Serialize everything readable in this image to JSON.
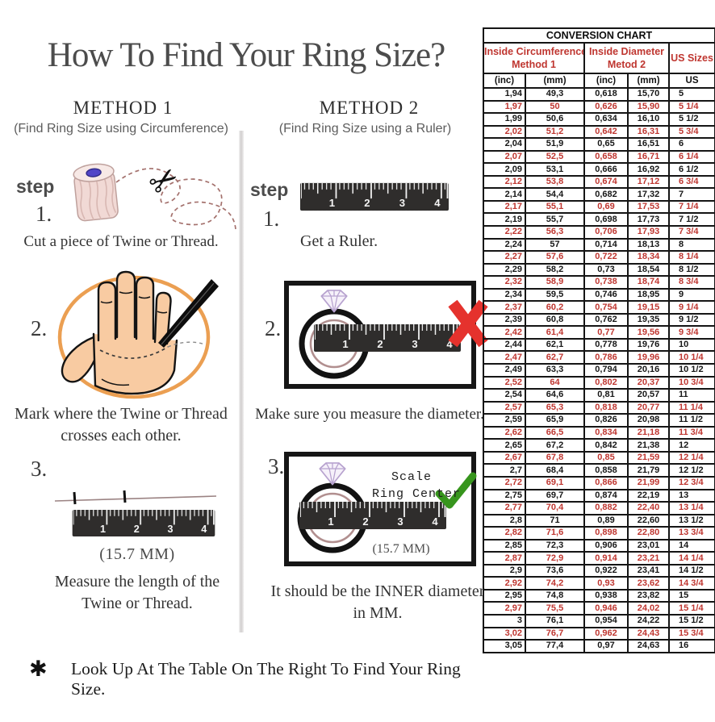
{
  "page": {
    "title": "How To Find Your Ring Size?",
    "footnote_symbol": "✱",
    "footnote_text": "Look Up At The Table On The Right To Find Your Ring Size."
  },
  "method1": {
    "heading": "METHOD 1",
    "subheading": "(Find Ring Size using Circumference)",
    "step_label": "step",
    "steps": [
      {
        "number": "1.",
        "caption": "Cut a piece of Twine or Thread."
      },
      {
        "number": "2.",
        "caption_line1": "Mark where the Twine or Thread",
        "caption_line2": "crosses each other."
      },
      {
        "number": "3.",
        "measurement": "(15.7 MM)",
        "caption_line1": "Measure the length of the",
        "caption_line2": "Twine or Thread."
      }
    ]
  },
  "method2": {
    "heading": "METHOD 2",
    "subheading": "(Find Ring Size using a Ruler)",
    "step_label": "step",
    "steps": [
      {
        "number": "1.",
        "caption": "Get a Ruler."
      },
      {
        "number": "2.",
        "caption": "Make sure you measure the diameter."
      },
      {
        "number": "3.",
        "scale_line1": "Scale",
        "scale_line2": "Ring Center",
        "measurement": "(15.7 MM)",
        "caption_line1": "It should be the INNER diameter",
        "caption_line2": "in MM."
      }
    ]
  },
  "ruler": {
    "numbers": [
      "1",
      "2",
      "3",
      "4"
    ]
  },
  "colors": {
    "table_red": "#bf3630",
    "table_black": "#161616",
    "check_green": "#37951d",
    "cross_red": "#e5322d",
    "hand_skin": "#f8cba2",
    "circle_orange": "#e9953f",
    "ring_inner": "#b18f8f",
    "diamond_lavender": "#b7a2cf"
  },
  "conversion_chart": {
    "title": "CONVERSION CHART",
    "groups": [
      {
        "line1": "Inside Circumference",
        "line2": "Method 1"
      },
      {
        "line1": "Inside Diameter",
        "line2": "Metod 2"
      },
      {
        "label": "US Sizes"
      }
    ],
    "subheaders": [
      "(inc)",
      "(mm)",
      "(inc)",
      "(mm)",
      "US"
    ],
    "rows": [
      [
        "1,94",
        "49,3",
        "0,618",
        "15,70",
        "5"
      ],
      [
        "1,97",
        "50",
        "0,626",
        "15,90",
        "5 1/4"
      ],
      [
        "1,99",
        "50,6",
        "0,634",
        "16,10",
        "5 1/2"
      ],
      [
        "2,02",
        "51,2",
        "0,642",
        "16,31",
        "5 3/4"
      ],
      [
        "2,04",
        "51,9",
        "0,65",
        "16,51",
        "6"
      ],
      [
        "2,07",
        "52,5",
        "0,658",
        "16,71",
        "6 1/4"
      ],
      [
        "2,09",
        "53,1",
        "0,666",
        "16,92",
        "6 1/2"
      ],
      [
        "2,12",
        "53,8",
        "0,674",
        "17,12",
        "6 3/4"
      ],
      [
        "2,14",
        "54,4",
        "0,682",
        "17,32",
        "7"
      ],
      [
        "2,17",
        "55,1",
        "0,69",
        "17,53",
        "7 1/4"
      ],
      [
        "2,19",
        "55,7",
        "0,698",
        "17,73",
        "7 1/2"
      ],
      [
        "2,22",
        "56,3",
        "0,706",
        "17,93",
        "7 3/4"
      ],
      [
        "2,24",
        "57",
        "0,714",
        "18,13",
        "8"
      ],
      [
        "2,27",
        "57,6",
        "0,722",
        "18,34",
        "8 1/4"
      ],
      [
        "2,29",
        "58,2",
        "0,73",
        "18,54",
        "8 1/2"
      ],
      [
        "2,32",
        "58,9",
        "0,738",
        "18,74",
        "8 3/4"
      ],
      [
        "2,34",
        "59,5",
        "0,746",
        "18,95",
        "9"
      ],
      [
        "2,37",
        "60,2",
        "0,754",
        "19,15",
        "9 1/4"
      ],
      [
        "2,39",
        "60,8",
        "0,762",
        "19,35",
        "9 1/2"
      ],
      [
        "2,42",
        "61,4",
        "0,77",
        "19,56",
        "9 3/4"
      ],
      [
        "2,44",
        "62,1",
        "0,778",
        "19,76",
        "10"
      ],
      [
        "2,47",
        "62,7",
        "0,786",
        "19,96",
        "10 1/4"
      ],
      [
        "2,49",
        "63,3",
        "0,794",
        "20,16",
        "10 1/2"
      ],
      [
        "2,52",
        "64",
        "0,802",
        "20,37",
        "10 3/4"
      ],
      [
        "2,54",
        "64,6",
        "0,81",
        "20,57",
        "11"
      ],
      [
        "2,57",
        "65,3",
        "0,818",
        "20,77",
        "11 1/4"
      ],
      [
        "2,59",
        "65,9",
        "0,826",
        "20,98",
        "11 1/2"
      ],
      [
        "2,62",
        "66,5",
        "0,834",
        "21,18",
        "11 3/4"
      ],
      [
        "2,65",
        "67,2",
        "0,842",
        "21,38",
        "12"
      ],
      [
        "2,67",
        "67,8",
        "0,85",
        "21,59",
        "12 1/4"
      ],
      [
        "2,7",
        "68,4",
        "0,858",
        "21,79",
        "12 1/2"
      ],
      [
        "2,72",
        "69,1",
        "0,866",
        "21,99",
        "12 3/4"
      ],
      [
        "2,75",
        "69,7",
        "0,874",
        "22,19",
        "13"
      ],
      [
        "2,77",
        "70,4",
        "0,882",
        "22,40",
        "13 1/4"
      ],
      [
        "2,8",
        "71",
        "0,89",
        "22,60",
        "13 1/2"
      ],
      [
        "2,82",
        "71,6",
        "0,898",
        "22,80",
        "13 3/4"
      ],
      [
        "2,85",
        "72,3",
        "0,906",
        "23,01",
        "14"
      ],
      [
        "2,87",
        "72,9",
        "0,914",
        "23,21",
        "14 1/4"
      ],
      [
        "2,9",
        "73,6",
        "0,922",
        "23,41",
        "14 1/2"
      ],
      [
        "2,92",
        "74,2",
        "0,93",
        "23,62",
        "14 3/4"
      ],
      [
        "2,95",
        "74,8",
        "0,938",
        "23,82",
        "15"
      ],
      [
        "2,97",
        "75,5",
        "0,946",
        "24,02",
        "15 1/4"
      ],
      [
        "3",
        "76,1",
        "0,954",
        "24,22",
        "15 1/2"
      ],
      [
        "3,02",
        "76,7",
        "0,962",
        "24,43",
        "15 3/4"
      ],
      [
        "3,05",
        "77,4",
        "0,97",
        "24,63",
        "16"
      ]
    ]
  }
}
